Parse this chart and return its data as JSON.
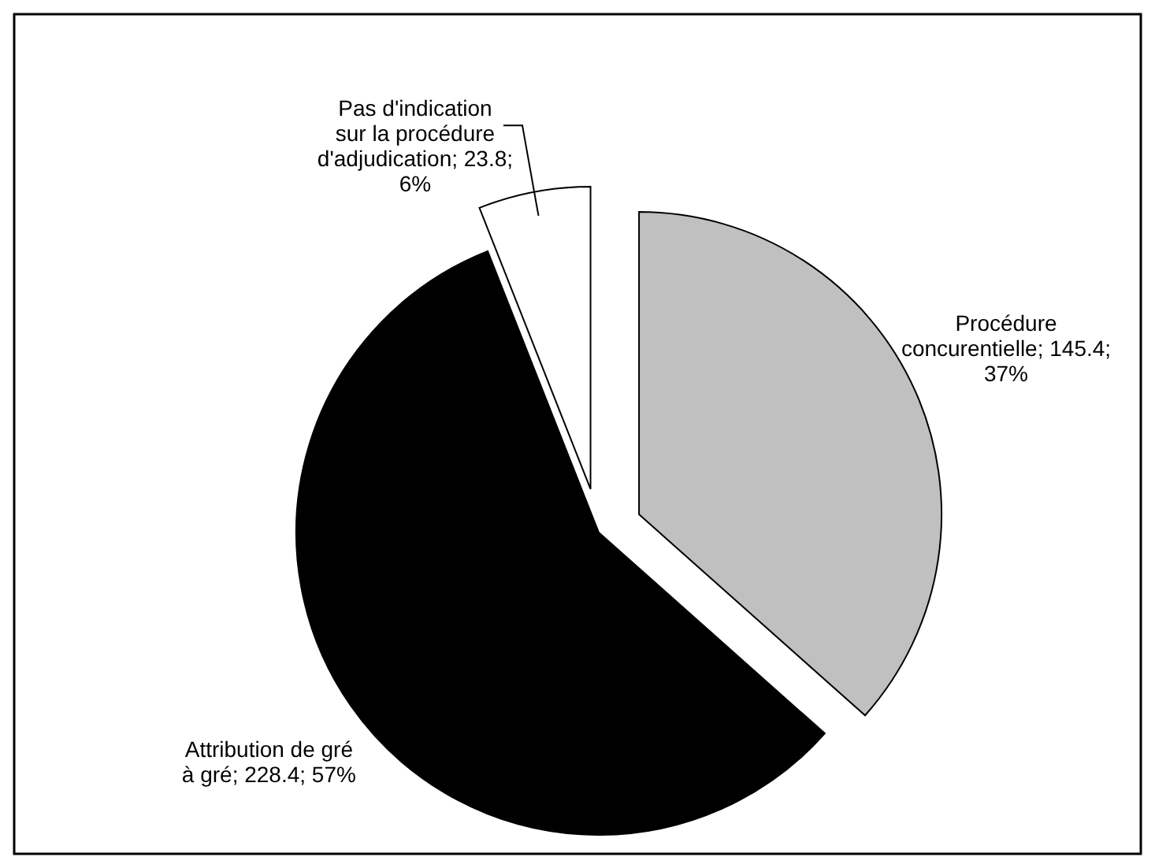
{
  "chart_data": {
    "type": "pie",
    "categories": [
      "Procédure concurentielle",
      "Attribution de gré à gré",
      "Pas d'indication sur la procédure d'adjudication"
    ],
    "values": [
      145.4,
      228.4,
      23.8
    ],
    "value_labels": [
      "145.4; 37%",
      "228.4; 57%",
      "23.8; 6%"
    ],
    "colors": [
      "#c0c0c0",
      "#000000",
      "#ffffff"
    ]
  }
}
